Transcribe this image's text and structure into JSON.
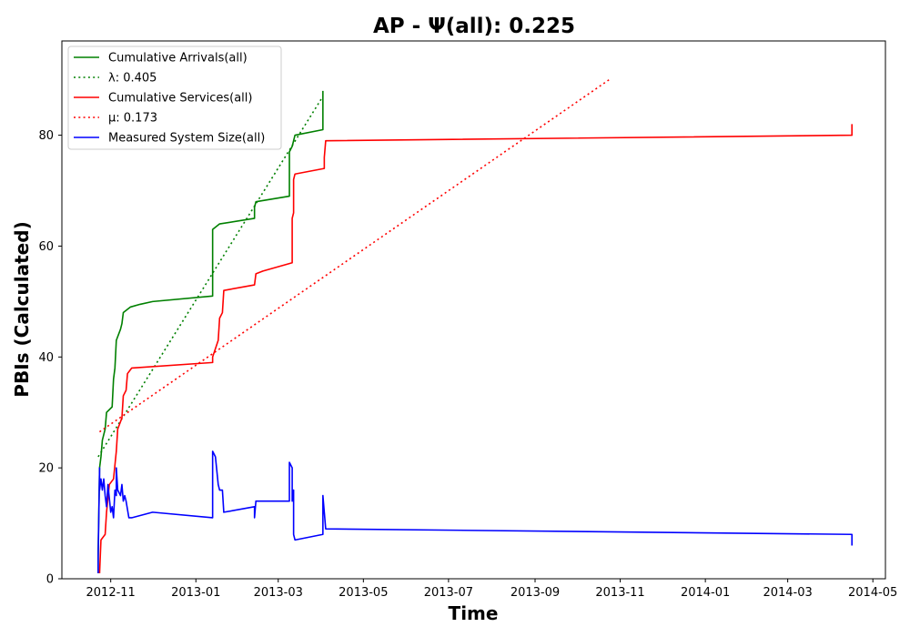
{
  "chart_data": {
    "type": "line",
    "title": "AP -  Ψ(all): 0.225",
    "xlabel": "Time",
    "ylabel": "PBIs (Calculated)",
    "xlim": [
      "2012-09-27",
      "2014-05-10"
    ],
    "ylim": [
      0,
      97
    ],
    "grid": false,
    "legend_position": "top-left",
    "x_ticks": [
      "2012-11",
      "2013-01",
      "2013-03",
      "2013-05",
      "2013-07",
      "2013-09",
      "2013-11",
      "2014-01",
      "2014-03",
      "2014-05"
    ],
    "y_ticks": [
      0,
      20,
      40,
      60,
      80
    ],
    "series": [
      {
        "name": "Cumulative Arrivals(all)",
        "color": "#008000",
        "style": "solid",
        "points": [
          [
            "2012-10-23",
            1
          ],
          [
            "2012-10-23",
            5
          ],
          [
            "2012-10-24",
            20
          ],
          [
            "2012-10-25",
            22
          ],
          [
            "2012-10-26",
            25
          ],
          [
            "2012-10-28",
            27
          ],
          [
            "2012-10-29",
            30
          ],
          [
            "2012-11-02",
            31
          ],
          [
            "2012-11-03",
            36
          ],
          [
            "2012-11-04",
            38
          ],
          [
            "2012-11-05",
            43
          ],
          [
            "2012-11-08",
            45
          ],
          [
            "2012-11-09",
            46
          ],
          [
            "2012-11-10",
            48
          ],
          [
            "2012-11-15",
            49
          ],
          [
            "2012-11-22",
            49.5
          ],
          [
            "2012-12-01",
            50
          ],
          [
            "2013-01-13",
            51
          ],
          [
            "2013-01-13",
            63
          ],
          [
            "2013-01-18",
            64
          ],
          [
            "2013-02-12",
            65
          ],
          [
            "2013-02-12",
            67
          ],
          [
            "2013-02-13",
            68
          ],
          [
            "2013-03-09",
            69
          ],
          [
            "2013-03-09",
            77
          ],
          [
            "2013-03-11",
            78
          ],
          [
            "2013-03-13",
            80
          ],
          [
            "2013-04-02",
            81
          ],
          [
            "2013-04-02",
            88
          ]
        ]
      },
      {
        "name": "λ: 0.405",
        "color": "#008000",
        "style": "dotted",
        "points": [
          [
            "2012-10-23",
            22
          ],
          [
            "2013-04-02",
            87
          ]
        ]
      },
      {
        "name": "Cumulative Services(all)",
        "color": "#ff0000",
        "style": "solid",
        "points": [
          [
            "2012-10-24",
            1
          ],
          [
            "2012-10-25",
            7
          ],
          [
            "2012-10-28",
            8
          ],
          [
            "2012-10-29",
            12
          ],
          [
            "2012-10-31",
            17
          ],
          [
            "2012-11-03",
            18
          ],
          [
            "2012-11-05",
            23
          ],
          [
            "2012-11-06",
            27
          ],
          [
            "2012-11-09",
            29
          ],
          [
            "2012-11-10",
            33
          ],
          [
            "2012-11-12",
            34
          ],
          [
            "2012-11-13",
            37
          ],
          [
            "2012-11-16",
            38
          ],
          [
            "2013-01-13",
            39
          ],
          [
            "2013-01-13",
            40
          ],
          [
            "2013-01-17",
            43
          ],
          [
            "2013-01-18",
            47
          ],
          [
            "2013-01-20",
            48
          ],
          [
            "2013-01-21",
            52
          ],
          [
            "2013-02-12",
            53
          ],
          [
            "2013-02-13",
            55
          ],
          [
            "2013-02-18",
            55.5
          ],
          [
            "2013-03-11",
            57
          ],
          [
            "2013-03-11",
            65
          ],
          [
            "2013-03-12",
            66
          ],
          [
            "2013-03-12",
            72
          ],
          [
            "2013-03-13",
            73
          ],
          [
            "2013-04-03",
            74
          ],
          [
            "2013-04-03",
            76
          ],
          [
            "2013-04-04",
            79
          ],
          [
            "2014-04-16",
            80
          ],
          [
            "2014-04-16",
            82
          ]
        ]
      },
      {
        "name": "μ: 0.173",
        "color": "#ff0000",
        "style": "dotted",
        "points": [
          [
            "2012-10-24",
            26.5
          ],
          [
            "2013-10-24",
            90
          ]
        ]
      },
      {
        "name": "Measured System Size(all)",
        "color": "#0000ff",
        "style": "solid",
        "points": [
          [
            "2012-10-23",
            1
          ],
          [
            "2012-10-23",
            4
          ],
          [
            "2012-10-24",
            20
          ],
          [
            "2012-10-24",
            16
          ],
          [
            "2012-10-25",
            18
          ],
          [
            "2012-10-26",
            16
          ],
          [
            "2012-10-27",
            18
          ],
          [
            "2012-10-28",
            15
          ],
          [
            "2012-10-29",
            13
          ],
          [
            "2012-10-30",
            17
          ],
          [
            "2012-11-01",
            12
          ],
          [
            "2012-11-02",
            13
          ],
          [
            "2012-11-03",
            11
          ],
          [
            "2012-11-04",
            16
          ],
          [
            "2012-11-05",
            15
          ],
          [
            "2012-11-05",
            20
          ],
          [
            "2012-11-06",
            16
          ],
          [
            "2012-11-08",
            15
          ],
          [
            "2012-11-09",
            17
          ],
          [
            "2012-11-10",
            14
          ],
          [
            "2012-11-11",
            15
          ],
          [
            "2012-11-12",
            14
          ],
          [
            "2012-11-14",
            11
          ],
          [
            "2012-11-16",
            11
          ],
          [
            "2012-12-01",
            12
          ],
          [
            "2013-01-13",
            11
          ],
          [
            "2013-01-13",
            23
          ],
          [
            "2013-01-15",
            22
          ],
          [
            "2013-01-17",
            17
          ],
          [
            "2013-01-18",
            16
          ],
          [
            "2013-01-20",
            16
          ],
          [
            "2013-01-21",
            12
          ],
          [
            "2013-02-12",
            13
          ],
          [
            "2013-02-12",
            11
          ],
          [
            "2013-02-13",
            14
          ],
          [
            "2013-03-09",
            14
          ],
          [
            "2013-03-09",
            21
          ],
          [
            "2013-03-11",
            20
          ],
          [
            "2013-03-11",
            14
          ],
          [
            "2013-03-12",
            16
          ],
          [
            "2013-03-12",
            8
          ],
          [
            "2013-03-13",
            7
          ],
          [
            "2013-04-02",
            8
          ],
          [
            "2013-04-02",
            15
          ],
          [
            "2013-04-03",
            12
          ],
          [
            "2013-04-04",
            9
          ],
          [
            "2014-04-16",
            8
          ],
          [
            "2014-04-16",
            6
          ]
        ]
      }
    ]
  }
}
